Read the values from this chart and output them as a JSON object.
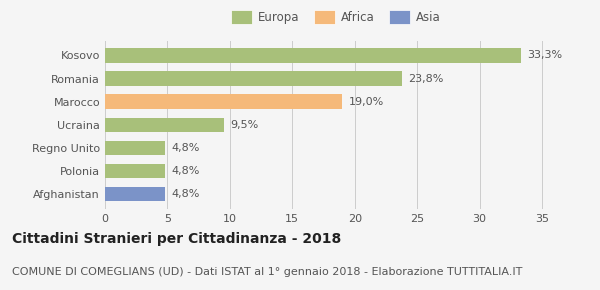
{
  "categories": [
    "Kosovo",
    "Romania",
    "Marocco",
    "Ucraina",
    "Regno Unito",
    "Polonia",
    "Afghanistan"
  ],
  "values": [
    33.3,
    23.8,
    19.0,
    9.5,
    4.8,
    4.8,
    4.8
  ],
  "labels": [
    "33,3%",
    "23,8%",
    "19,0%",
    "9,5%",
    "4,8%",
    "4,8%",
    "4,8%"
  ],
  "colors": [
    "#a8c07a",
    "#a8c07a",
    "#f5b97a",
    "#a8c07a",
    "#a8c07a",
    "#a8c07a",
    "#7b93c8"
  ],
  "legend": [
    {
      "label": "Europa",
      "color": "#a8c07a"
    },
    {
      "label": "Africa",
      "color": "#f5b97a"
    },
    {
      "label": "Asia",
      "color": "#7b93c8"
    }
  ],
  "xlim": [
    0,
    37
  ],
  "xticks": [
    0,
    5,
    10,
    15,
    20,
    25,
    30,
    35
  ],
  "title": "Cittadini Stranieri per Cittadinanza - 2018",
  "subtitle": "COMUNE DI COMEGLIANS (UD) - Dati ISTAT al 1° gennaio 2018 - Elaborazione TUTTITALIA.IT",
  "title_fontsize": 10,
  "subtitle_fontsize": 8,
  "label_fontsize": 8,
  "tick_fontsize": 8,
  "legend_fontsize": 8.5,
  "bar_height": 0.62,
  "bg_color": "#f5f5f5"
}
